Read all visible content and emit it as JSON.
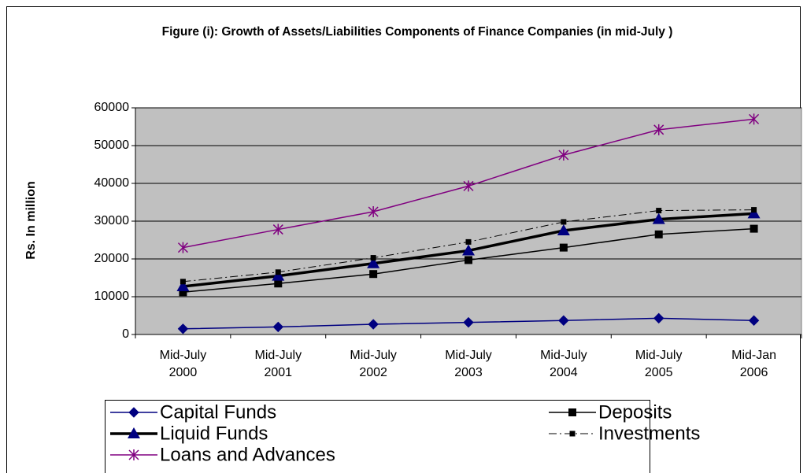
{
  "chart_data": {
    "type": "line",
    "title": "Figure (i): Growth of Assets/Liabilities Components of Finance Companies (in mid-July )",
    "ylabel": "Rs. In million",
    "categories": [
      "Mid-July 2000",
      "Mid-July 2001",
      "Mid-July 2002",
      "Mid-July 2003",
      "Mid-July 2004",
      "Mid-July 2005",
      "Mid-Jan 2006"
    ],
    "ylim": [
      0,
      60000
    ],
    "yticks": [
      0,
      10000,
      20000,
      30000,
      40000,
      50000,
      60000
    ],
    "grid": true,
    "series": [
      {
        "name": "Capital Funds",
        "color": "#000080",
        "marker": "diamond",
        "marker_color": "#000080",
        "line_width": 1.5,
        "dash": "solid",
        "values": [
          1500,
          2000,
          2700,
          3200,
          3700,
          4300,
          3700
        ]
      },
      {
        "name": "Deposits",
        "color": "#000000",
        "marker": "square",
        "marker_color": "#000000",
        "line_width": 1.5,
        "dash": "solid",
        "values": [
          11200,
          13500,
          16000,
          19700,
          23000,
          26500,
          28000
        ]
      },
      {
        "name": "Liquid Funds",
        "color": "#000000",
        "marker": "triangle",
        "marker_color": "#000080",
        "line_width": 3.5,
        "dash": "solid",
        "values": [
          12700,
          15500,
          18800,
          22200,
          27500,
          30500,
          32000
        ]
      },
      {
        "name": "Investments",
        "color": "#000000",
        "marker": "smallsquare",
        "marker_color": "#000000",
        "line_width": 1,
        "dash": "dashdot",
        "values": [
          14000,
          16500,
          20300,
          24500,
          29800,
          32800,
          33000
        ]
      },
      {
        "name": "Loans and Advances",
        "color": "#800080",
        "marker": "asterisk",
        "marker_color": "#800080",
        "line_width": 1.5,
        "dash": "solid",
        "values": [
          23000,
          27800,
          32500,
          39300,
          47500,
          54200,
          57000
        ]
      }
    ]
  }
}
